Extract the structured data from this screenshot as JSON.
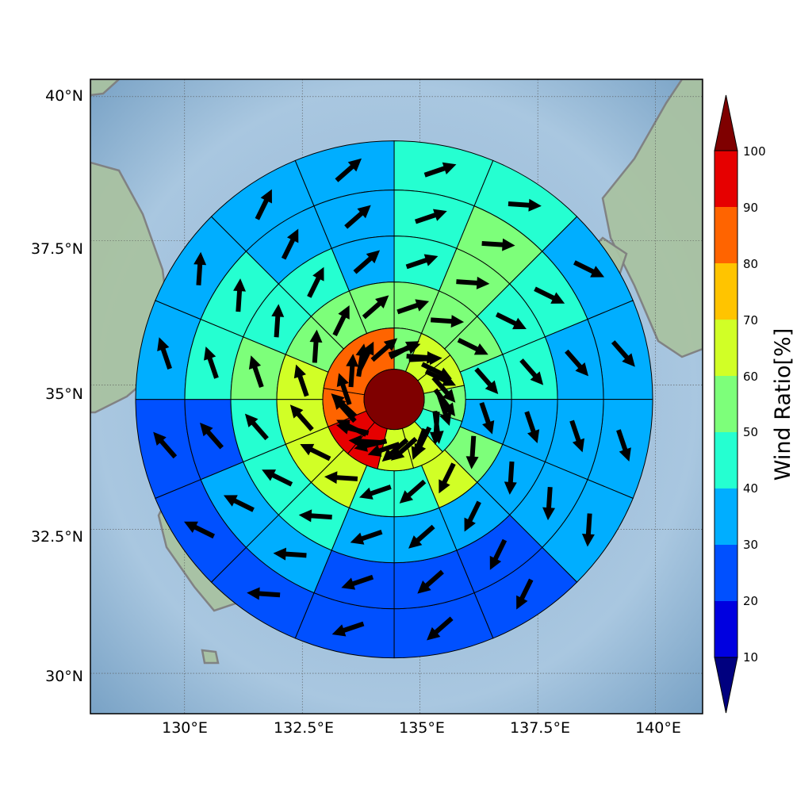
{
  "map": {
    "lat_labels": [
      "40°N",
      "37.5°N",
      "35°N",
      "32.5°N",
      "30°N"
    ],
    "lon_labels": [
      "130°E",
      "132.5°E",
      "135°E",
      "137.5°E",
      "140°E"
    ],
    "lon_values": [
      130,
      132.5,
      135,
      137.5,
      140
    ],
    "lat_values": [
      40,
      37.5,
      35,
      32.5,
      30
    ],
    "extent": {
      "lon": [
        128,
        141
      ],
      "lat": [
        29.3,
        40.3
      ]
    },
    "center": {
      "lon": 134.45,
      "lat": 34.75
    },
    "ring_count": 5,
    "sector_count": 16,
    "colors": {
      "ocean": "#9dbcd9",
      "land": "#a9c2a2",
      "coastline": "#7f7f7f",
      "arrow": "#000000"
    },
    "rings": [
      [
        42,
        41,
        38,
        36,
        36,
        35,
        28,
        27,
        27,
        23,
        25,
        21,
        36,
        31,
        31,
        34
      ],
      [
        42,
        51,
        43,
        39,
        36,
        37,
        27,
        22,
        21,
        33,
        31,
        29,
        44,
        41,
        35,
        38
      ],
      [
        43,
        53,
        47,
        44,
        36,
        37,
        39,
        34,
        33,
        47,
        43,
        43,
        50,
        48,
        42,
        38
      ],
      [
        55,
        51,
        56,
        44,
        35,
        54,
        61,
        43,
        45,
        60,
        65,
        63,
        63,
        56,
        54,
        51
      ],
      [
        57,
        58,
        43,
        42,
        37,
        37,
        26,
        25,
        24,
        24,
        28,
        26,
        23,
        23,
        33,
        38
      ]
    ],
    "inner_ring": [
      52,
      62,
      64,
      52,
      45,
      63,
      62,
      95,
      99,
      81,
      85
    ],
    "center_value": 100
  },
  "colorbar": {
    "title": "Wind Ratio[%]",
    "ticks": [
      "10",
      "20",
      "30",
      "40",
      "50",
      "60",
      "70",
      "80",
      "90",
      "100"
    ],
    "colors": [
      "#00007f",
      "#0000e0",
      "#0050ff",
      "#00aeff",
      "#25ffd1",
      "#7dff7a",
      "#d1ff26",
      "#ffc400",
      "#ff6400",
      "#e60000",
      "#7f0000"
    ]
  }
}
